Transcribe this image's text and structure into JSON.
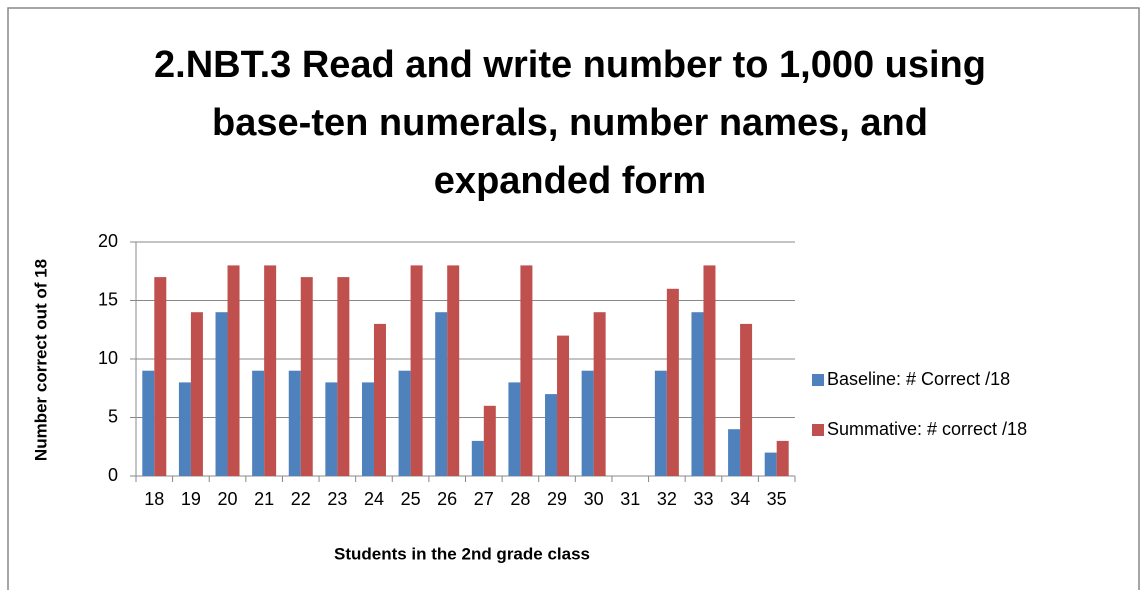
{
  "chart_data": {
    "type": "bar",
    "title": "2.NBT.3 Read and write number to 1,000 using base-ten numerals, number names, and expanded form",
    "x_label": "Students in the 2nd grade class",
    "y_label": "Number correct out of 18",
    "categories": [
      "18",
      "19",
      "20",
      "21",
      "22",
      "23",
      "24",
      "25",
      "26",
      "27",
      "28",
      "29",
      "30",
      "31",
      "32",
      "33",
      "34",
      "35"
    ],
    "series": [
      {
        "name": "Baseline: # Correct /18",
        "color": "#4f81bd",
        "values": [
          9,
          8,
          14,
          9,
          9,
          8,
          8,
          9,
          14,
          3,
          8,
          7,
          9,
          null,
          9,
          14,
          4,
          2
        ]
      },
      {
        "name": "Summative: # correct /18",
        "color": "#c0504d",
        "values": [
          17,
          14,
          18,
          18,
          17,
          17,
          13,
          18,
          18,
          6,
          18,
          12,
          14,
          null,
          16,
          18,
          13,
          3
        ]
      }
    ],
    "ylim": [
      0,
      20
    ],
    "yticks": [
      0,
      5,
      10,
      15,
      20
    ],
    "grid": true,
    "legend": "right"
  }
}
